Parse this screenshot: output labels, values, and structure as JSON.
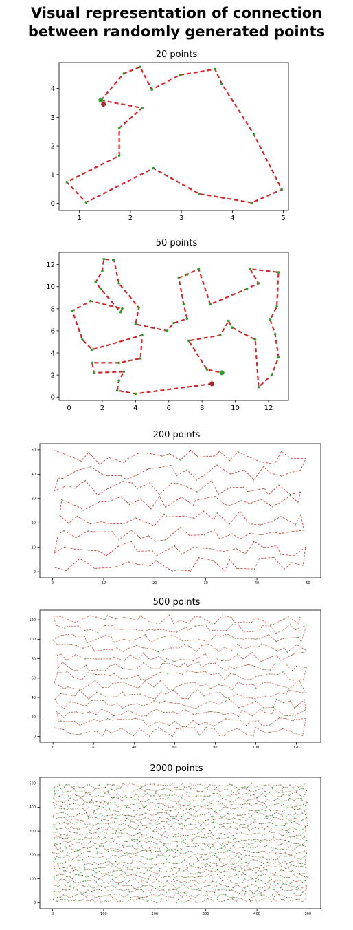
{
  "title_line1": "Visual representation of connection",
  "title_line2": "between randomly generated points",
  "colors": {
    "path": "#d62728",
    "point": "#2ca02c",
    "start": "#2ca02c",
    "end": "#a52a2a"
  },
  "chart_data": [
    {
      "type": "line",
      "title": "20 points",
      "xlim": [
        0.6,
        5.1
      ],
      "ylim": [
        -0.25,
        4.9
      ],
      "xticks": [
        1,
        2,
        3,
        4,
        5
      ],
      "yticks": [
        0,
        1,
        2,
        3,
        4
      ],
      "grid": false,
      "series": [
        {
          "x": [
            1.42,
            2.23,
            1.78,
            1.78,
            0.75,
            1.13,
            2.45,
            3.35,
            4.38,
            4.97,
            4.42,
            3.79,
            3.66,
            2.97,
            2.42,
            2.19,
            1.87,
            1.42
          ],
          "y": [
            3.59,
            3.32,
            2.62,
            1.66,
            0.74,
            0.03,
            1.22,
            0.33,
            0.02,
            0.48,
            2.41,
            4.17,
            4.67,
            4.47,
            3.96,
            4.75,
            4.52,
            3.59
          ]
        }
      ],
      "start": [
        1.42,
        3.59
      ],
      "end": [
        1.47,
        3.45
      ]
    },
    {
      "type": "line",
      "title": "50 points",
      "xlim": [
        -0.6,
        13.2
      ],
      "ylim": [
        -0.3,
        13.1
      ],
      "xticks": [
        0,
        2,
        4,
        6,
        8,
        10,
        12
      ],
      "yticks": [
        0,
        2,
        4,
        6,
        8,
        10,
        12
      ],
      "grid": false,
      "series": [
        {
          "x": [
            8.6,
            4.0,
            2.9,
            3.0,
            3.3,
            1.5,
            1.4,
            3.0,
            4.3,
            4.4,
            1.4,
            0.8,
            0.2,
            1.3,
            3.2,
            3.1,
            1.9,
            1.6,
            2.0,
            2.1,
            2.7,
            3.0,
            4.2,
            4.0,
            5.9,
            6.3,
            7.1,
            6.9,
            6.6,
            7.1,
            7.8,
            8.5,
            10.7,
            11.4,
            10.9,
            12.6,
            12.5,
            12.1,
            12.4,
            12.6,
            12.2,
            11.4,
            11.2,
            9.8,
            9.6,
            9.1,
            7.2,
            8.3,
            9.2
          ],
          "y": [
            1.2,
            0.3,
            0.6,
            1.5,
            2.3,
            2.2,
            3.1,
            3.1,
            3.5,
            5.6,
            4.3,
            5.2,
            7.8,
            8.7,
            8.0,
            7.7,
            9.8,
            10.4,
            11.4,
            12.5,
            12.4,
            10.3,
            8.1,
            6.6,
            6.0,
            6.7,
            7.1,
            8.4,
            10.8,
            11.1,
            11.6,
            8.4,
            9.8,
            10.3,
            11.6,
            11.3,
            8.2,
            7.0,
            5.7,
            3.6,
            2.0,
            0.9,
            5.2,
            6.3,
            6.9,
            5.6,
            5.1,
            2.5,
            2.2
          ]
        }
      ],
      "start": [
        9.2,
        2.2
      ],
      "end": [
        8.6,
        1.2
      ]
    },
    {
      "type": "line",
      "title": "200 points",
      "xlim": [
        -2.5,
        52.5
      ],
      "ylim": [
        -2.5,
        52.5
      ],
      "xticks": [
        0,
        10,
        20,
        30,
        40,
        50
      ],
      "yticks": [
        0,
        10,
        20,
        30,
        40,
        50
      ],
      "grid": false
    },
    {
      "type": "line",
      "title": "500 points",
      "xlim": [
        -6.5,
        132
      ],
      "ylim": [
        -6,
        130
      ],
      "xticks": [
        0,
        20,
        40,
        60,
        80,
        100,
        120
      ],
      "yticks": [
        0,
        20,
        40,
        60,
        80,
        100,
        120
      ],
      "grid": false
    },
    {
      "type": "line",
      "title": "2000 points",
      "xlim": [
        -25,
        525
      ],
      "ylim": [
        -25,
        525
      ],
      "xticks": [
        0,
        100,
        200,
        300,
        400,
        500
      ],
      "yticks": [
        0,
        100,
        200,
        300,
        400,
        500
      ],
      "grid": false
    }
  ]
}
